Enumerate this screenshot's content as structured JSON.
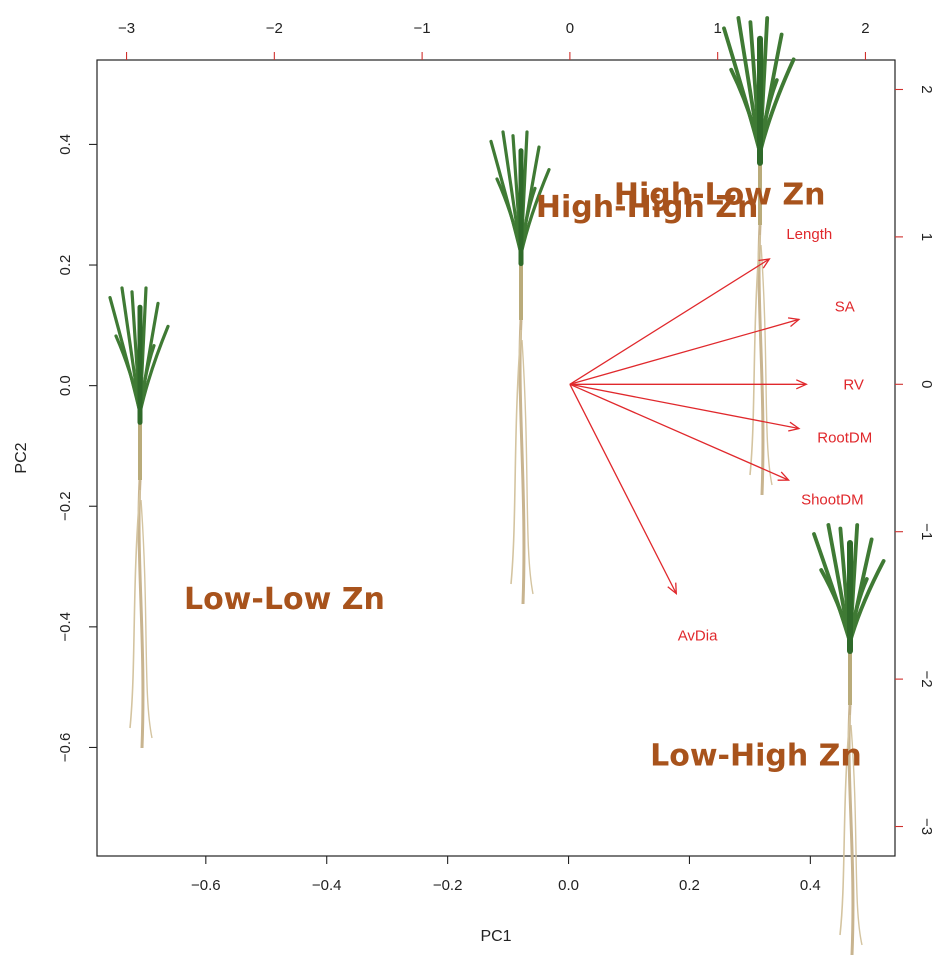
{
  "chart_data": {
    "type": "biplot",
    "xlabel": "PC1",
    "ylabel": "PC2",
    "x_ticks": [
      "−0.6",
      "−0.4",
      "−0.2",
      "0.0",
      "0.2",
      "0.4"
    ],
    "x_tick_values": [
      -0.6,
      -0.4,
      -0.2,
      0.0,
      0.2,
      0.4
    ],
    "y_ticks": [
      "−0.6",
      "−0.4",
      "−0.2",
      "0.0",
      "0.2",
      "0.4"
    ],
    "y_tick_values": [
      -0.6,
      -0.4,
      -0.2,
      0.0,
      0.2,
      0.4
    ],
    "xlim": [
      -0.78,
      0.54
    ],
    "ylim": [
      -0.78,
      0.54
    ],
    "top_ticks": [
      "−3",
      "−2",
      "−1",
      "0",
      "1",
      "2"
    ],
    "top_tick_values": [
      -3,
      -2,
      -1,
      0,
      1,
      2
    ],
    "right_ticks": [
      "−3",
      "−2",
      "−1",
      "0",
      "1",
      "2"
    ],
    "right_tick_values": [
      -3,
      -2,
      -1,
      0,
      1,
      2
    ],
    "loadings_lim": [
      -3.2,
      2.2
    ],
    "arrow_color": "#e0282c",
    "group_color": "#a8531c",
    "loadings": [
      {
        "name": "Length",
        "x": 1.35,
        "y": 0.85
      },
      {
        "name": "SA",
        "x": 1.55,
        "y": 0.44
      },
      {
        "name": "RV",
        "x": 1.6,
        "y": 0.0
      },
      {
        "name": "RootDM",
        "x": 1.55,
        "y": -0.3
      },
      {
        "name": "ShootDM",
        "x": 1.48,
        "y": -0.65
      },
      {
        "name": "AvDia",
        "x": 0.72,
        "y": -1.42
      }
    ],
    "groups": [
      {
        "name": "High-Low Zn",
        "plant_x": 0.32,
        "plant_y": 0.2
      },
      {
        "name": "High-High Zn",
        "plant_x": -0.08,
        "plant_y": 0.05
      },
      {
        "name": "Low-Low Zn",
        "plant_x": -0.71,
        "plant_y": -0.18
      },
      {
        "name": "Low-High Zn",
        "plant_x": 0.46,
        "plant_y": -0.57
      }
    ]
  }
}
